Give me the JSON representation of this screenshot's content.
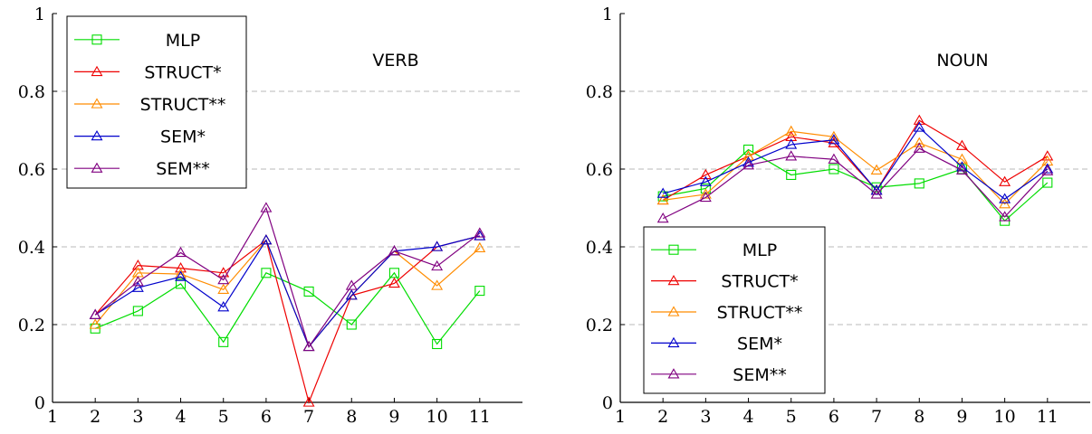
{
  "chart_data": [
    {
      "type": "line",
      "title": "VERB",
      "xlabel": "",
      "ylabel": "",
      "xlim": [
        1,
        12
      ],
      "ylim": [
        0,
        1
      ],
      "x_ticks": [
        "1",
        "2",
        "3",
        "4",
        "5",
        "6",
        "7",
        "8",
        "9",
        "10",
        "11"
      ],
      "y_ticks": [
        "0",
        "0.2",
        "0.4",
        "0.6",
        "0.8",
        "1"
      ],
      "grid": "horizontal dashed",
      "legend_position": "top-left",
      "x": [
        2,
        3,
        4,
        5,
        6,
        7,
        8,
        9,
        10,
        11
      ],
      "series": [
        {
          "name": "MLP",
          "color": "#00dd00",
          "values": [
            0.19,
            0.235,
            0.305,
            0.155,
            0.333,
            0.285,
            0.2,
            0.333,
            0.15,
            0.287
          ]
        },
        {
          "name": "STRUCT*",
          "color": "#ee0000",
          "values": [
            0.225,
            0.352,
            0.345,
            0.333,
            0.417,
            0.0,
            0.275,
            0.306,
            0.4,
            0.428
          ]
        },
        {
          "name": "STRUCT**",
          "color": "#ff8c00",
          "values": [
            0.2,
            0.333,
            0.33,
            0.29,
            0.417,
            0.143,
            0.275,
            0.389,
            0.3,
            0.397
          ]
        },
        {
          "name": "SEM*",
          "color": "#0000cc",
          "values": [
            0.225,
            0.295,
            0.323,
            0.245,
            0.417,
            0.143,
            0.275,
            0.389,
            0.4,
            0.428
          ]
        },
        {
          "name": "SEM**",
          "color": "#800080",
          "values": [
            0.225,
            0.31,
            0.385,
            0.315,
            0.5,
            0.143,
            0.3,
            0.389,
            0.35,
            0.435
          ]
        }
      ]
    },
    {
      "type": "line",
      "title": "NOUN",
      "xlabel": "",
      "ylabel": "",
      "xlim": [
        1,
        12
      ],
      "ylim": [
        0,
        1
      ],
      "x_ticks": [
        "1",
        "2",
        "3",
        "4",
        "5",
        "6",
        "7",
        "8",
        "9",
        "10",
        "11"
      ],
      "y_ticks": [
        "0",
        "0.2",
        "0.4",
        "0.6",
        "0.8",
        "1"
      ],
      "grid": "horizontal dashed",
      "legend_position": "bottom-left",
      "x": [
        2,
        3,
        4,
        5,
        6,
        7,
        8,
        9,
        10,
        11
      ],
      "series": [
        {
          "name": "MLP",
          "color": "#00dd00",
          "values": [
            0.53,
            0.55,
            0.65,
            0.585,
            0.6,
            0.553,
            0.563,
            0.6,
            0.467,
            0.565
          ]
        },
        {
          "name": "STRUCT*",
          "color": "#ee0000",
          "values": [
            0.52,
            0.585,
            0.633,
            0.683,
            0.667,
            0.545,
            0.725,
            0.66,
            0.567,
            0.633
          ]
        },
        {
          "name": "STRUCT**",
          "color": "#ff8c00",
          "values": [
            0.52,
            0.535,
            0.633,
            0.697,
            0.683,
            0.597,
            0.667,
            0.625,
            0.51,
            0.62
          ]
        },
        {
          "name": "SEM*",
          "color": "#0000cc",
          "values": [
            0.537,
            0.567,
            0.617,
            0.663,
            0.675,
            0.545,
            0.707,
            0.605,
            0.523,
            0.6
          ]
        },
        {
          "name": "SEM**",
          "color": "#800080",
          "values": [
            0.473,
            0.527,
            0.61,
            0.633,
            0.625,
            0.535,
            0.653,
            0.597,
            0.477,
            0.595
          ]
        }
      ]
    }
  ]
}
